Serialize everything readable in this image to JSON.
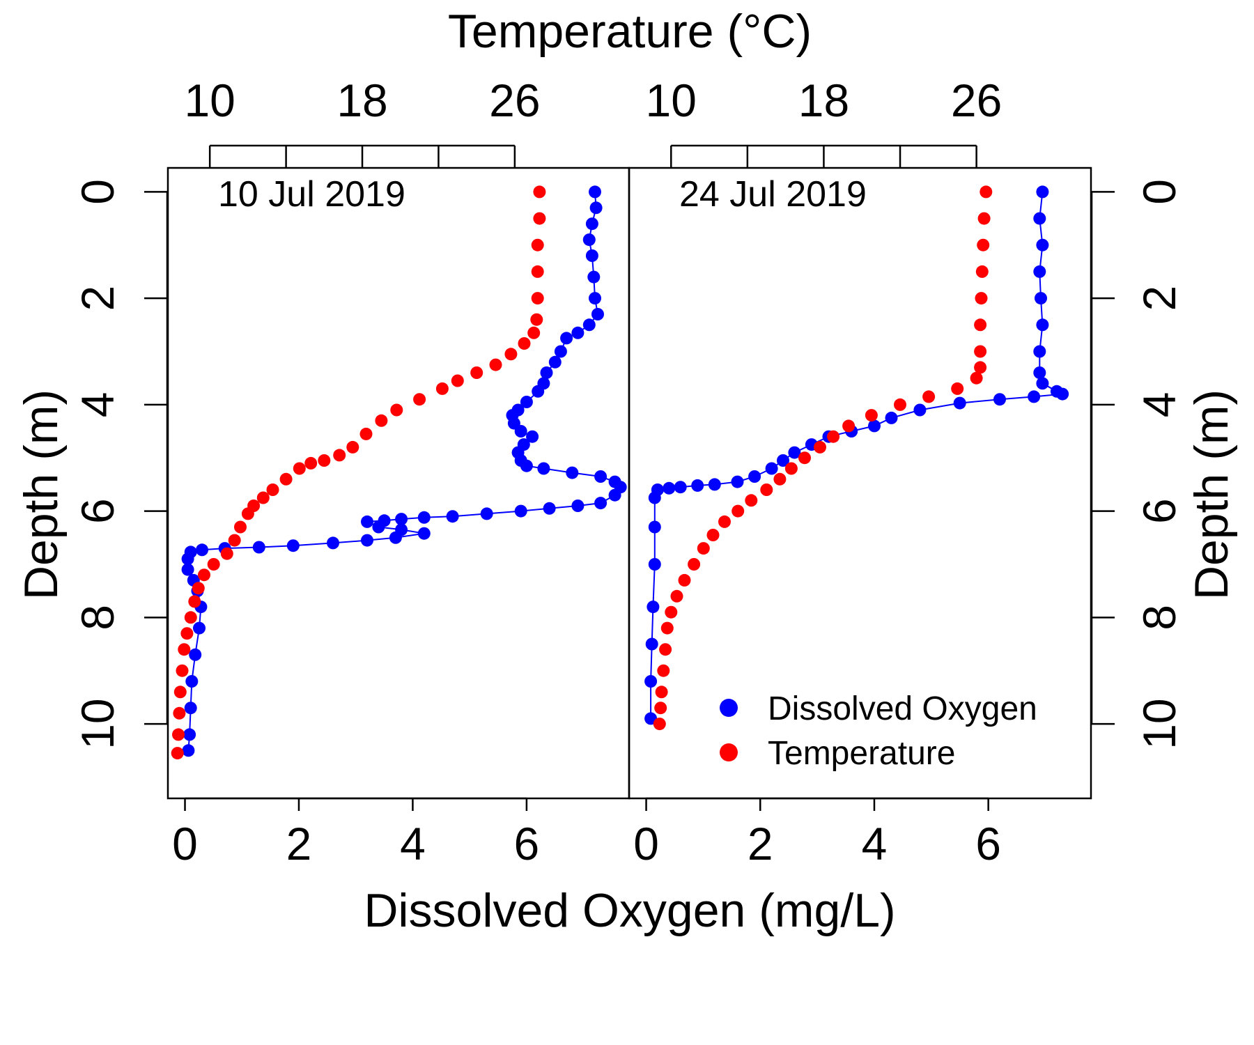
{
  "chart_data": {
    "type": "scatter",
    "top_axis_title": "Temperature (°C)",
    "bottom_axis_title": "Dissolved Oxygen (mg/L)",
    "left_axis_title": "Depth (m)",
    "right_axis_title": "Depth (m)",
    "x_ticks_do": [
      "0",
      "2",
      "4",
      "6"
    ],
    "x_ticks_temp": [
      "10",
      "18",
      "26"
    ],
    "y_ticks": [
      "0",
      "2",
      "4",
      "6",
      "8",
      "10"
    ],
    "do_range": [
      -0.3,
      7.8
    ],
    "temp_range": [
      7.8,
      32
    ],
    "depth_range": [
      -0.45,
      11.4
    ],
    "y_reversed": true,
    "legend": {
      "position": "bottom-right",
      "entries": [
        {
          "label": "Dissolved Oxygen",
          "color": "#0000FF"
        },
        {
          "label": "Temperature",
          "color": "#FF0000"
        }
      ]
    },
    "panels": [
      {
        "label": "10 Jul 2019",
        "series": [
          {
            "name": "Dissolved Oxygen",
            "color": "#0000FF",
            "points": [
              [
                7.2,
                0
              ],
              [
                7.22,
                0.3
              ],
              [
                7.15,
                0.6
              ],
              [
                7.1,
                0.9
              ],
              [
                7.15,
                1.2
              ],
              [
                7.18,
                1.6
              ],
              [
                7.2,
                2.0
              ],
              [
                7.25,
                2.3
              ],
              [
                7.1,
                2.5
              ],
              [
                6.9,
                2.65
              ],
              [
                6.7,
                2.75
              ],
              [
                6.6,
                3.0
              ],
              [
                6.5,
                3.2
              ],
              [
                6.35,
                3.4
              ],
              [
                6.3,
                3.6
              ],
              [
                6.2,
                3.75
              ],
              [
                6.0,
                3.95
              ],
              [
                5.85,
                4.1
              ],
              [
                5.75,
                4.2
              ],
              [
                5.78,
                4.35
              ],
              [
                5.9,
                4.5
              ],
              [
                6.1,
                4.6
              ],
              [
                5.95,
                4.75
              ],
              [
                5.85,
                4.9
              ],
              [
                5.9,
                5.05
              ],
              [
                6.0,
                5.15
              ],
              [
                6.3,
                5.2
              ],
              [
                6.8,
                5.28
              ],
              [
                7.3,
                5.35
              ],
              [
                7.55,
                5.45
              ],
              [
                7.65,
                5.55
              ],
              [
                7.55,
                5.7
              ],
              [
                7.3,
                5.85
              ],
              [
                6.9,
                5.9
              ],
              [
                6.4,
                5.95
              ],
              [
                5.9,
                6.0
              ],
              [
                5.3,
                6.05
              ],
              [
                4.7,
                6.1
              ],
              [
                4.2,
                6.12
              ],
              [
                3.8,
                6.15
              ],
              [
                3.5,
                6.18
              ],
              [
                3.2,
                6.2
              ],
              [
                3.4,
                6.3
              ],
              [
                3.8,
                6.35
              ],
              [
                4.2,
                6.42
              ],
              [
                3.7,
                6.5
              ],
              [
                3.2,
                6.55
              ],
              [
                2.6,
                6.6
              ],
              [
                1.9,
                6.65
              ],
              [
                1.3,
                6.68
              ],
              [
                0.7,
                6.7
              ],
              [
                0.3,
                6.73
              ],
              [
                0.1,
                6.77
              ],
              [
                0.05,
                6.9
              ],
              [
                0.05,
                7.1
              ],
              [
                0.15,
                7.3
              ],
              [
                0.22,
                7.5
              ],
              [
                0.28,
                7.8
              ],
              [
                0.25,
                8.2
              ],
              [
                0.18,
                8.7
              ],
              [
                0.12,
                9.2
              ],
              [
                0.1,
                9.7
              ],
              [
                0.08,
                10.2
              ],
              [
                0.06,
                10.5
              ]
            ]
          },
          {
            "name": "Temperature",
            "color": "#FF0000",
            "points": [
              [
                27.3,
                0
              ],
              [
                27.3,
                0.5
              ],
              [
                27.2,
                1.0
              ],
              [
                27.2,
                1.5
              ],
              [
                27.2,
                2.0
              ],
              [
                27.15,
                2.4
              ],
              [
                27.0,
                2.65
              ],
              [
                26.5,
                2.85
              ],
              [
                25.8,
                3.05
              ],
              [
                25.0,
                3.25
              ],
              [
                24.0,
                3.4
              ],
              [
                23.0,
                3.55
              ],
              [
                22.2,
                3.7
              ],
              [
                21.0,
                3.9
              ],
              [
                19.8,
                4.1
              ],
              [
                19.0,
                4.3
              ],
              [
                18.2,
                4.55
              ],
              [
                17.5,
                4.8
              ],
              [
                16.8,
                4.95
              ],
              [
                16.0,
                5.05
              ],
              [
                15.3,
                5.1
              ],
              [
                14.7,
                5.2
              ],
              [
                14.0,
                5.4
              ],
              [
                13.3,
                5.6
              ],
              [
                12.8,
                5.75
              ],
              [
                12.3,
                5.9
              ],
              [
                12.0,
                6.05
              ],
              [
                11.6,
                6.3
              ],
              [
                11.3,
                6.55
              ],
              [
                10.9,
                6.8
              ],
              [
                10.2,
                7.0
              ],
              [
                9.7,
                7.2
              ],
              [
                9.4,
                7.45
              ],
              [
                9.2,
                7.7
              ],
              [
                9.0,
                8.0
              ],
              [
                8.8,
                8.3
              ],
              [
                8.65,
                8.6
              ],
              [
                8.55,
                9.0
              ],
              [
                8.45,
                9.4
              ],
              [
                8.4,
                9.8
              ],
              [
                8.35,
                10.2
              ],
              [
                8.3,
                10.55
              ]
            ]
          }
        ]
      },
      {
        "label": "24 Jul 2019",
        "series": [
          {
            "name": "Dissolved Oxygen",
            "color": "#0000FF",
            "points": [
              [
                6.95,
                0
              ],
              [
                6.9,
                0.5
              ],
              [
                6.95,
                1.0
              ],
              [
                6.9,
                1.5
              ],
              [
                6.92,
                2.0
              ],
              [
                6.95,
                2.5
              ],
              [
                6.9,
                3.0
              ],
              [
                6.9,
                3.4
              ],
              [
                6.95,
                3.6
              ],
              [
                7.2,
                3.75
              ],
              [
                7.3,
                3.8
              ],
              [
                6.8,
                3.85
              ],
              [
                6.2,
                3.9
              ],
              [
                5.5,
                3.97
              ],
              [
                4.8,
                4.1
              ],
              [
                4.3,
                4.25
              ],
              [
                4.0,
                4.4
              ],
              [
                3.6,
                4.5
              ],
              [
                3.2,
                4.6
              ],
              [
                2.9,
                4.75
              ],
              [
                2.6,
                4.9
              ],
              [
                2.4,
                5.05
              ],
              [
                2.2,
                5.2
              ],
              [
                1.9,
                5.35
              ],
              [
                1.6,
                5.45
              ],
              [
                1.2,
                5.5
              ],
              [
                0.9,
                5.52
              ],
              [
                0.6,
                5.55
              ],
              [
                0.4,
                5.57
              ],
              [
                0.2,
                5.6
              ],
              [
                0.15,
                5.75
              ],
              [
                0.15,
                6.3
              ],
              [
                0.15,
                7.0
              ],
              [
                0.12,
                7.8
              ],
              [
                0.1,
                8.5
              ],
              [
                0.08,
                9.2
              ],
              [
                0.08,
                9.9
              ]
            ]
          },
          {
            "name": "Temperature",
            "color": "#FF0000",
            "points": [
              [
                26.5,
                0
              ],
              [
                26.4,
                0.5
              ],
              [
                26.35,
                1.0
              ],
              [
                26.3,
                1.5
              ],
              [
                26.25,
                2.0
              ],
              [
                26.2,
                2.5
              ],
              [
                26.2,
                3.0
              ],
              [
                26.2,
                3.3
              ],
              [
                26.0,
                3.5
              ],
              [
                25.0,
                3.7
              ],
              [
                23.5,
                3.85
              ],
              [
                22.0,
                4.0
              ],
              [
                20.5,
                4.2
              ],
              [
                19.3,
                4.4
              ],
              [
                18.5,
                4.6
              ],
              [
                17.8,
                4.8
              ],
              [
                17.0,
                5.0
              ],
              [
                16.3,
                5.2
              ],
              [
                15.7,
                5.4
              ],
              [
                15.0,
                5.6
              ],
              [
                14.2,
                5.8
              ],
              [
                13.5,
                6.0
              ],
              [
                12.8,
                6.2
              ],
              [
                12.2,
                6.45
              ],
              [
                11.7,
                6.7
              ],
              [
                11.2,
                7.0
              ],
              [
                10.7,
                7.3
              ],
              [
                10.3,
                7.6
              ],
              [
                10.0,
                7.9
              ],
              [
                9.8,
                8.2
              ],
              [
                9.7,
                8.6
              ],
              [
                9.6,
                9.0
              ],
              [
                9.5,
                9.4
              ],
              [
                9.45,
                9.7
              ],
              [
                9.4,
                10.0
              ]
            ]
          }
        ]
      }
    ]
  }
}
